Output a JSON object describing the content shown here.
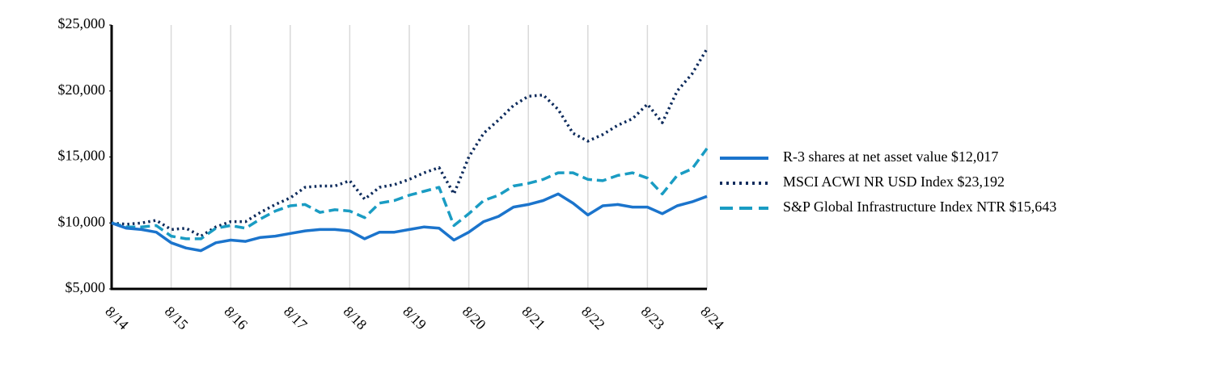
{
  "chart_data": {
    "type": "line",
    "categories": [
      "8/14",
      null,
      null,
      null,
      "8/15",
      null,
      null,
      null,
      "8/16",
      null,
      null,
      null,
      "8/17",
      null,
      null,
      null,
      "8/18",
      null,
      null,
      null,
      "8/19",
      null,
      null,
      null,
      "8/20",
      null,
      null,
      null,
      "8/21",
      null,
      null,
      null,
      "8/22",
      null,
      null,
      null,
      "8/23",
      null,
      null,
      null,
      "8/24"
    ],
    "series": [
      {
        "name": "R-3 shares at net asset value $12,017",
        "color": "#1b74cc",
        "style": "solid",
        "values": [
          10000,
          9600,
          9500,
          9300,
          8500,
          8100,
          7900,
          8500,
          8700,
          8600,
          8900,
          9000,
          9200,
          9400,
          9500,
          9500,
          9400,
          8800,
          9300,
          9300,
          9500,
          9700,
          9600,
          8700,
          9300,
          10100,
          10500,
          11200,
          11400,
          11700,
          12200,
          11500,
          10600,
          11300,
          11400,
          11200,
          11200,
          10700,
          11300,
          11600,
          12017
        ]
      },
      {
        "name": "MSCI ACWI NR USD Index $23,192",
        "color": "#0d2b5c",
        "style": "dotted",
        "values": [
          10000,
          9900,
          10000,
          10200,
          9500,
          9600,
          9000,
          9700,
          10100,
          10100,
          10800,
          11400,
          11900,
          12700,
          12800,
          12800,
          13200,
          11800,
          12700,
          12900,
          13300,
          13800,
          14200,
          12200,
          15000,
          16800,
          17800,
          18900,
          19600,
          19700,
          18600,
          16800,
          16200,
          16700,
          17400,
          17900,
          19000,
          17600,
          20000,
          21300,
          23192
        ]
      },
      {
        "name": "S&P Global Infrastructure Index NTR $15,643",
        "color": "#1a9cc3",
        "style": "dashed",
        "values": [
          10000,
          9700,
          9700,
          9800,
          9000,
          8800,
          8800,
          9600,
          9800,
          9600,
          10300,
          10900,
          11300,
          11400,
          10800,
          11000,
          10900,
          10400,
          11500,
          11700,
          12100,
          12400,
          12700,
          9800,
          10700,
          11700,
          12100,
          12800,
          13000,
          13300,
          13800,
          13800,
          13300,
          13200,
          13600,
          13800,
          13400,
          12200,
          13600,
          14100,
          15643
        ]
      }
    ],
    "ylim": [
      5000,
      25000
    ],
    "yticks": [
      {
        "value": 5000,
        "label": "$5,000"
      },
      {
        "value": 10000,
        "label": "$10,000"
      },
      {
        "value": 15000,
        "label": "$15,000"
      },
      {
        "value": 20000,
        "label": "$20,000"
      },
      {
        "value": 25000,
        "label": "$25,000"
      }
    ],
    "grid": "x",
    "legend": "right"
  }
}
